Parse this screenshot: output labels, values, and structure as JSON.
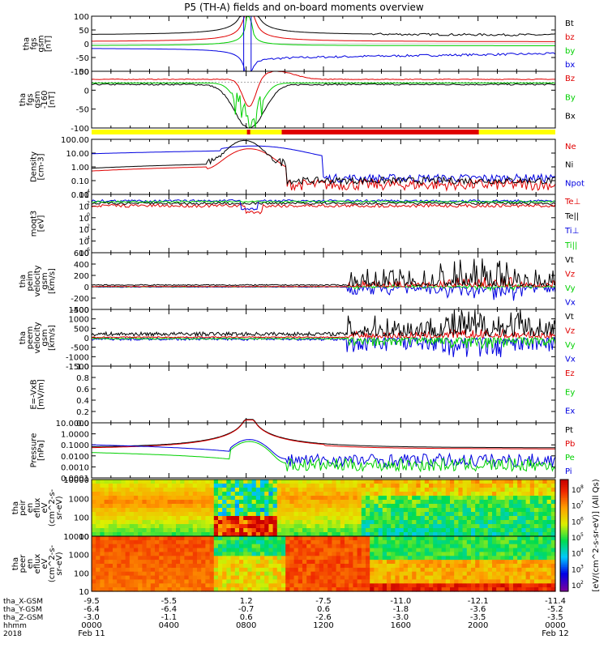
{
  "title": "P5 (TH-A) fields and on-board moments overview",
  "colors": {
    "black": "#000000",
    "red": "#e00000",
    "green": "#00d000",
    "blue": "#0000e0",
    "yellow": "#ffff00"
  },
  "chart_data": [
    {
      "type": "line",
      "ylabel": [
        "tha",
        "fgs",
        "gsm",
        "[nT]"
      ],
      "ylim": [
        -100,
        100
      ],
      "yticks": [
        "100",
        "50",
        "0",
        "-50",
        "-100"
      ],
      "legend": [
        {
          "name": "Bt",
          "color": "#000000"
        },
        {
          "name": "bz",
          "color": "#e00000"
        },
        {
          "name": "by",
          "color": "#00d000"
        },
        {
          "name": "bx",
          "color": "#0000e0"
        }
      ]
    },
    {
      "type": "line",
      "ylabel": [
        "tha",
        "fgs",
        "gsm",
        "-160",
        "[nT]"
      ],
      "ylim": [
        -125,
        30
      ],
      "yticks": [
        "50",
        "0",
        "-50",
        "-100"
      ],
      "legend": [
        {
          "name": "Bz",
          "color": "#e00000"
        },
        {
          "name": "By",
          "color": "#00d000"
        },
        {
          "name": "Bx",
          "color": "#000000"
        }
      ]
    },
    {
      "type": "line",
      "ylabel": [
        "Density",
        "[cm-3]"
      ],
      "log": true,
      "yticks": [
        "100.00",
        "10.00",
        "1.00",
        "0.10",
        "0.01"
      ],
      "legend": [
        {
          "name": "Ne",
          "color": "#e00000"
        },
        {
          "name": "Ni",
          "color": "#000000"
        },
        {
          "name": "Npot",
          "color": "#0000e0"
        }
      ]
    },
    {
      "type": "line",
      "ylabel": [
        "moqt3",
        "[eV]"
      ],
      "log": true,
      "yticks": [
        "10",
        "10",
        "10",
        "10",
        "10",
        "10"
      ],
      "legend": [
        {
          "name": "Te⊥",
          "color": "#e00000"
        },
        {
          "name": "Te||",
          "color": "#000000"
        },
        {
          "name": "Ti⊥",
          "color": "#0000e0"
        },
        {
          "name": "Ti||",
          "color": "#00d000"
        }
      ]
    },
    {
      "type": "line",
      "ylabel": [
        "tha",
        "peim",
        "velocity",
        "gsm",
        "[km/s]"
      ],
      "ylim": [
        -400,
        600
      ],
      "yticks": [
        "600",
        "400",
        "200",
        "0",
        "-200",
        "-400"
      ],
      "legend": [
        {
          "name": "Vt",
          "color": "#000000"
        },
        {
          "name": "Vz",
          "color": "#e00000"
        },
        {
          "name": "Vy",
          "color": "#00d000"
        },
        {
          "name": "Vx",
          "color": "#0000e0"
        }
      ]
    },
    {
      "type": "line",
      "ylabel": [
        "tha",
        "peem",
        "velocity",
        "gsm",
        "[km/s]"
      ],
      "ylim": [
        -1500,
        1500
      ],
      "yticks": [
        "1500",
        "1000",
        "500",
        "0",
        "-500",
        "-1000",
        "-1500"
      ],
      "legend": [
        {
          "name": "Vt",
          "color": "#000000"
        },
        {
          "name": "Vz",
          "color": "#e00000"
        },
        {
          "name": "Vy",
          "color": "#00d000"
        },
        {
          "name": "Vx",
          "color": "#0000e0"
        }
      ]
    },
    {
      "type": "line",
      "ylabel": [
        "E=-VxB",
        "[mV/m]"
      ],
      "ylim": [
        0,
        1
      ],
      "yticks": [
        "1.0",
        "0.8",
        "0.6",
        "0.4",
        "0.2",
        "0.0"
      ],
      "legend": [
        {
          "name": "Ez",
          "color": "#e00000"
        },
        {
          "name": "Ey",
          "color": "#00d000"
        },
        {
          "name": "Ex",
          "color": "#0000e0"
        }
      ]
    },
    {
      "type": "line",
      "ylabel": [
        "Pressure",
        "[nPa]"
      ],
      "log": true,
      "yticks": [
        "10.0000",
        "1.0000",
        "0.1000",
        "0.0100",
        "0.0010",
        "0.0001"
      ],
      "legend": [
        {
          "name": "Pt",
          "color": "#000000"
        },
        {
          "name": "Pb",
          "color": "#e00000"
        },
        {
          "name": "Pe",
          "color": "#00d000"
        },
        {
          "name": "Pi",
          "color": "#0000e0"
        }
      ]
    },
    {
      "type": "heatmap",
      "ylabel": [
        "tha",
        "peir",
        "en",
        "eflux",
        "eV",
        "(cm^2-s-",
        "sr-eV)"
      ],
      "yticks": [
        "10000",
        "1000",
        "100",
        "10"
      ]
    },
    {
      "type": "heatmap",
      "ylabel": [
        "tha",
        "peer",
        "en",
        "eflux",
        "eV",
        "(cm^2-s-",
        "sr-eV)"
      ],
      "yticks": [
        "10000",
        "1000",
        "100",
        "10"
      ]
    }
  ],
  "colorbar": {
    "label": "[eV/(cm^2-s-sr-eV)] (All Qs)",
    "ticks": [
      "10",
      "10",
      "10",
      "10",
      "10",
      "10",
      "10"
    ],
    "exponents": [
      "8",
      "7",
      "6",
      "5",
      "4",
      "3",
      "2"
    ]
  },
  "xaxis": {
    "rows": [
      {
        "label": "tha_X-GSM",
        "values": [
          "-9.5",
          "-5.5",
          "1.2",
          "-7.5",
          "-11.0",
          "-12.1",
          "-11.4"
        ]
      },
      {
        "label": "tha_Y-GSM",
        "values": [
          "-6.4",
          "-6.4",
          "-0.7",
          "0.6",
          "-1.8",
          "-3.6",
          "-5.2"
        ]
      },
      {
        "label": "tha_Z-GSM",
        "values": [
          "-3.0",
          "-1.1",
          "0.6",
          "-2.6",
          "-3.0",
          "-3.5",
          "-3.5"
        ]
      },
      {
        "label": "hhmm",
        "values": [
          "0000",
          "0400",
          "0800",
          "1200",
          "1600",
          "2000",
          "0000"
        ]
      }
    ],
    "year": "2018",
    "date_start": "Feb 11",
    "date_end": "Feb 12"
  }
}
